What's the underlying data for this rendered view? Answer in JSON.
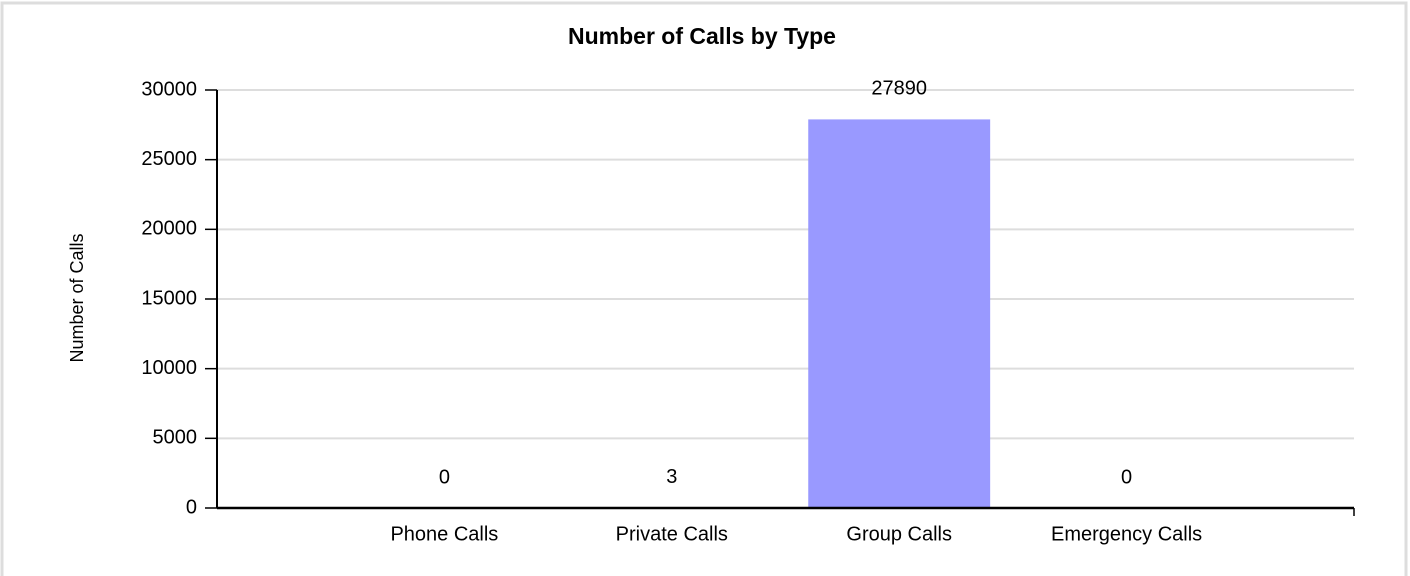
{
  "chart_data": {
    "type": "bar",
    "title": "Number of Calls by Type",
    "y_label": "Number of Calls",
    "categories": [
      "Phone Calls",
      "Private Calls",
      "Group Calls",
      "Emergency Calls"
    ],
    "values": [
      0,
      3,
      27890,
      0
    ],
    "color": "#9999ff",
    "ylim": [
      0,
      30000
    ],
    "yticks": [
      0,
      5000,
      10000,
      15000,
      20000,
      25000,
      30000
    ],
    "grid": true
  }
}
